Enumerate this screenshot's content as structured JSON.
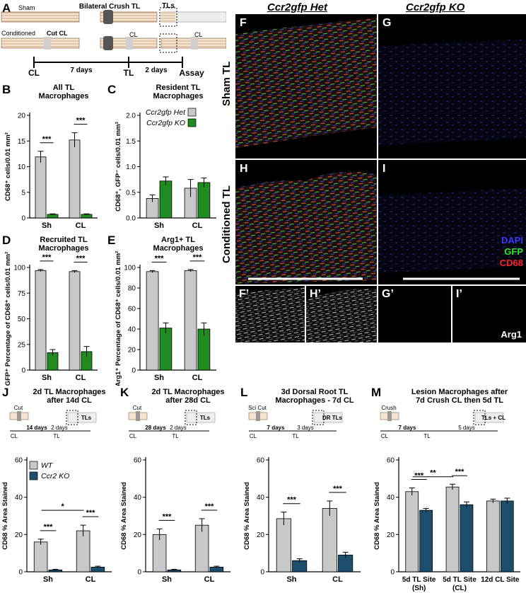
{
  "panel_letters": [
    "A",
    "B",
    "C",
    "D",
    "E",
    "F",
    "G",
    "H",
    "I",
    "J",
    "K",
    "L",
    "M",
    "F’",
    "H’",
    "G’",
    "I’"
  ],
  "schematic_A": {
    "sham": "Sham",
    "conditioned": "Conditioned",
    "cut_cl": "Cut CL",
    "bilateral": "Bilateral Crush TL",
    "tls": "TLs",
    "cl": "CL",
    "timeline": [
      "CL",
      "7 days",
      "TL",
      "2 days",
      "Assay"
    ]
  },
  "micrographs": {
    "col_het": "Ccr2gfp Het",
    "col_ko": "Ccr2gfp KO",
    "row_sham": "Sham TL",
    "row_cond": "Conditioned TL",
    "legend": [
      {
        "label": "DAPI",
        "color": "#3a3aff"
      },
      {
        "label": "GFP",
        "color": "#2ee82e"
      },
      {
        "label": "CD68",
        "color": "#ff2020"
      }
    ],
    "arg1": "Arg1"
  },
  "chart_data": [
    {
      "id": "B",
      "type": "bar",
      "title": "All TL Macrophages",
      "ylabel": "CD68⁺ cells/0.01 mm²",
      "ylim": [
        0,
        20
      ],
      "yticks": [
        0,
        5,
        10,
        15,
        20
      ],
      "categories": [
        "Sh",
        "CL"
      ],
      "series": [
        {
          "name": "Ccr2gfp Het",
          "color": "#c8c8c8",
          "values": [
            11.9,
            15.2
          ],
          "err": [
            1.1,
            1.4
          ]
        },
        {
          "name": "Ccr2gfp KO",
          "color": "#1e8c1e",
          "values": [
            0.7,
            0.7
          ],
          "err": [
            0.1,
            0.1
          ]
        }
      ],
      "sig": [
        "***",
        "***"
      ]
    },
    {
      "id": "C",
      "type": "bar",
      "title": "Resident TL Macrophages",
      "ylabel": "CD68⁺, GFP⁻ cells/0.01 mm²",
      "ylim": [
        0,
        2
      ],
      "yticks": [
        0.0,
        0.5,
        1.0,
        1.5,
        2.0
      ],
      "categories": [
        "Sh",
        "CL"
      ],
      "series": [
        {
          "name": "Ccr2gfp Het",
          "color": "#c8c8c8",
          "values": [
            0.38,
            0.58
          ],
          "err": [
            0.07,
            0.17
          ]
        },
        {
          "name": "Ccr2gfp KO",
          "color": "#1e8c1e",
          "values": [
            0.72,
            0.69
          ],
          "err": [
            0.08,
            0.09
          ]
        }
      ],
      "legend": [
        "Ccr2gfp Het",
        "Ccr2gfp KO"
      ]
    },
    {
      "id": "D",
      "type": "bar",
      "title": "Recruited TL Macrophages",
      "ylabel": "GFP⁺ Percentage of CD68⁺ cells/0.01 mm²",
      "ylim": [
        0,
        100
      ],
      "yticks": [
        0,
        25,
        50,
        75,
        100
      ],
      "categories": [
        "Sh",
        "CL"
      ],
      "series": [
        {
          "name": "Ccr2gfp Het",
          "color": "#c8c8c8",
          "values": [
            97,
            96
          ],
          "err": [
            1,
            1
          ]
        },
        {
          "name": "Ccr2gfp KO",
          "color": "#1e8c1e",
          "values": [
            17,
            18
          ],
          "err": [
            3,
            5
          ]
        }
      ],
      "sig": [
        "***",
        "***"
      ]
    },
    {
      "id": "E",
      "type": "bar",
      "title": "Arg1+ TL Macrophages",
      "ylabel": "Arg1⁺ Percentage of CD68⁺ cells/0.01 mm²",
      "ylim": [
        0,
        100
      ],
      "yticks": [
        0,
        20,
        40,
        60,
        80,
        100
      ],
      "categories": [
        "Sh",
        "CL"
      ],
      "series": [
        {
          "name": "Ccr2gfp Het",
          "color": "#c8c8c8",
          "values": [
            96,
            97
          ],
          "err": [
            1,
            1
          ]
        },
        {
          "name": "Ccr2gfp KO",
          "color": "#1e8c1e",
          "values": [
            41,
            40
          ],
          "err": [
            5,
            6
          ]
        }
      ],
      "sig": [
        "***",
        "***"
      ]
    },
    {
      "id": "J",
      "type": "bar",
      "title": "2d TL Macrophages after 14d CL",
      "ylabel": "CD68 % Area Stained",
      "ylim": [
        0,
        60
      ],
      "yticks": [
        0,
        20,
        40,
        60
      ],
      "categories": [
        "Sh",
        "CL"
      ],
      "series": [
        {
          "name": "WT",
          "color": "#c8c8c8",
          "values": [
            16,
            22
          ],
          "err": [
            1.5,
            3
          ]
        },
        {
          "name": "Ccr2 KO",
          "color": "#1c4e6e",
          "values": [
            1,
            2.5
          ],
          "err": [
            0.3,
            0.5
          ]
        }
      ],
      "sig": [
        "***",
        "***"
      ],
      "extra_sig": "*",
      "legend": [
        "WT",
        "Ccr2 KO"
      ],
      "schematic": {
        "cut": "Cut",
        "cl": "CL",
        "days1": "14 days",
        "tl": "TL",
        "days2": "2 days",
        "tls": "TLs"
      }
    },
    {
      "id": "K",
      "type": "bar",
      "title": "2d TL Macrophages after 28d CL",
      "ylabel": "CD68 % Area Stained",
      "ylim": [
        0,
        60
      ],
      "yticks": [
        0,
        20,
        40,
        60
      ],
      "categories": [
        "Sh",
        "CL"
      ],
      "series": [
        {
          "name": "WT",
          "color": "#c8c8c8",
          "values": [
            20,
            25
          ],
          "err": [
            3,
            3.5
          ]
        },
        {
          "name": "Ccr2 KO",
          "color": "#1c4e6e",
          "values": [
            1,
            2.5
          ],
          "err": [
            0.3,
            0.5
          ]
        }
      ],
      "sig": [
        "***",
        "***"
      ],
      "schematic": {
        "cut": "Cut",
        "cl": "CL",
        "days1": "28 days",
        "tl": "TL",
        "days2": "2 days",
        "tls": "TLs"
      }
    },
    {
      "id": "L",
      "type": "bar",
      "title": "3d Dorsal Root TL Macrophages - 7d CL",
      "ylabel": "CD68 % Area Stained",
      "ylim": [
        0,
        60
      ],
      "yticks": [
        0,
        20,
        40,
        60
      ],
      "categories": [
        "Sh",
        "CL"
      ],
      "series": [
        {
          "name": "WT",
          "color": "#c8c8c8",
          "values": [
            28.5,
            34
          ],
          "err": [
            3.5,
            4
          ]
        },
        {
          "name": "Ccr2 KO",
          "color": "#1c4e6e",
          "values": [
            6,
            9
          ],
          "err": [
            1,
            1.5
          ]
        }
      ],
      "sig": [
        "***",
        "***"
      ],
      "schematic": {
        "cut": "Sci Cut",
        "cl": "CL",
        "days1": "7 days",
        "tl": "TL",
        "days2": "3 days",
        "tls": "DR TLs",
        "cl2": "CL"
      }
    },
    {
      "id": "M",
      "type": "bar",
      "title": "Lesion Macrophages after 7d Crush CL then 5d TL",
      "ylabel": "CD68 % Area Stained",
      "ylim": [
        0,
        60
      ],
      "yticks": [
        0,
        20,
        40,
        60
      ],
      "categories": [
        "5d TL Site (Sh)",
        "5d TL Site (CL)",
        "12d CL Site"
      ],
      "series": [
        {
          "name": "WT",
          "color": "#c8c8c8",
          "values": [
            43,
            45.5,
            38
          ],
          "err": [
            2,
            1.5,
            1
          ]
        },
        {
          "name": "Ccr2 KO",
          "color": "#1c4e6e",
          "values": [
            33,
            36,
            38
          ],
          "err": [
            1,
            1.5,
            1.5
          ]
        }
      ],
      "sig": [
        "***",
        "***",
        ""
      ],
      "extra_sig": "**",
      "schematic": {
        "cut": "Crush",
        "cl": "CL",
        "days1": "7 days",
        "tl": "TL",
        "days2": "5 days",
        "tls": "TLs + CL"
      }
    }
  ]
}
